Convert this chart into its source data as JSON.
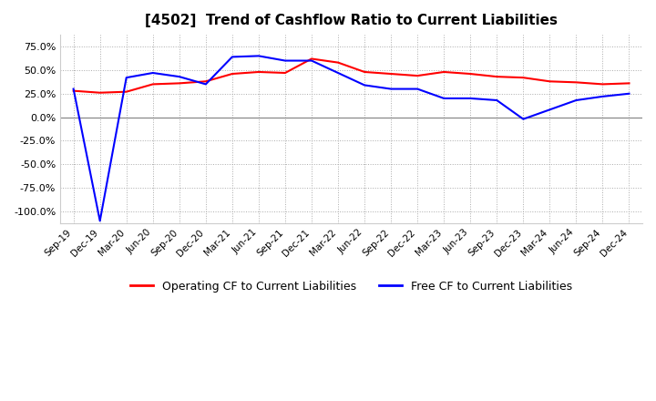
{
  "title": "[4502]  Trend of Cashflow Ratio to Current Liabilities",
  "title_fontsize": 11,
  "legend_labels": [
    "Operating CF to Current Liabilities",
    "Free CF to Current Liabilities"
  ],
  "legend_colors": [
    "#ff0000",
    "#0000ff"
  ],
  "x_labels": [
    "Sep-19",
    "Dec-19",
    "Mar-20",
    "Jun-20",
    "Sep-20",
    "Dec-20",
    "Mar-21",
    "Jun-21",
    "Sep-21",
    "Dec-21",
    "Mar-22",
    "Jun-22",
    "Sep-22",
    "Dec-22",
    "Mar-23",
    "Jun-23",
    "Sep-23",
    "Dec-23",
    "Mar-24",
    "Jun-24",
    "Sep-24",
    "Dec-24"
  ],
  "operating_cf": [
    28.0,
    26.0,
    27.0,
    35.0,
    36.0,
    38.0,
    46.0,
    48.0,
    47.0,
    62.0,
    58.0,
    48.0,
    46.0,
    44.0,
    48.0,
    46.0,
    43.0,
    42.0,
    38.0,
    37.0,
    35.0,
    36.0
  ],
  "free_cf": [
    30.0,
    -110.0,
    42.0,
    47.0,
    43.0,
    35.0,
    64.0,
    65.0,
    60.0,
    60.0,
    47.0,
    34.0,
    30.0,
    30.0,
    20.0,
    20.0,
    18.0,
    -2.0,
    8.0,
    18.0,
    22.0,
    25.0
  ],
  "ylim": [
    -112.5,
    87.5
  ],
  "yticks": [
    75.0,
    50.0,
    25.0,
    0.0,
    -25.0,
    -50.0,
    -75.0,
    -100.0
  ],
  "operating_color": "#ff0000",
  "free_color": "#0000ff",
  "bg_color": "#ffffff",
  "grid_color": "#aaaaaa",
  "zero_line_color": "#888888",
  "line_width": 1.5
}
